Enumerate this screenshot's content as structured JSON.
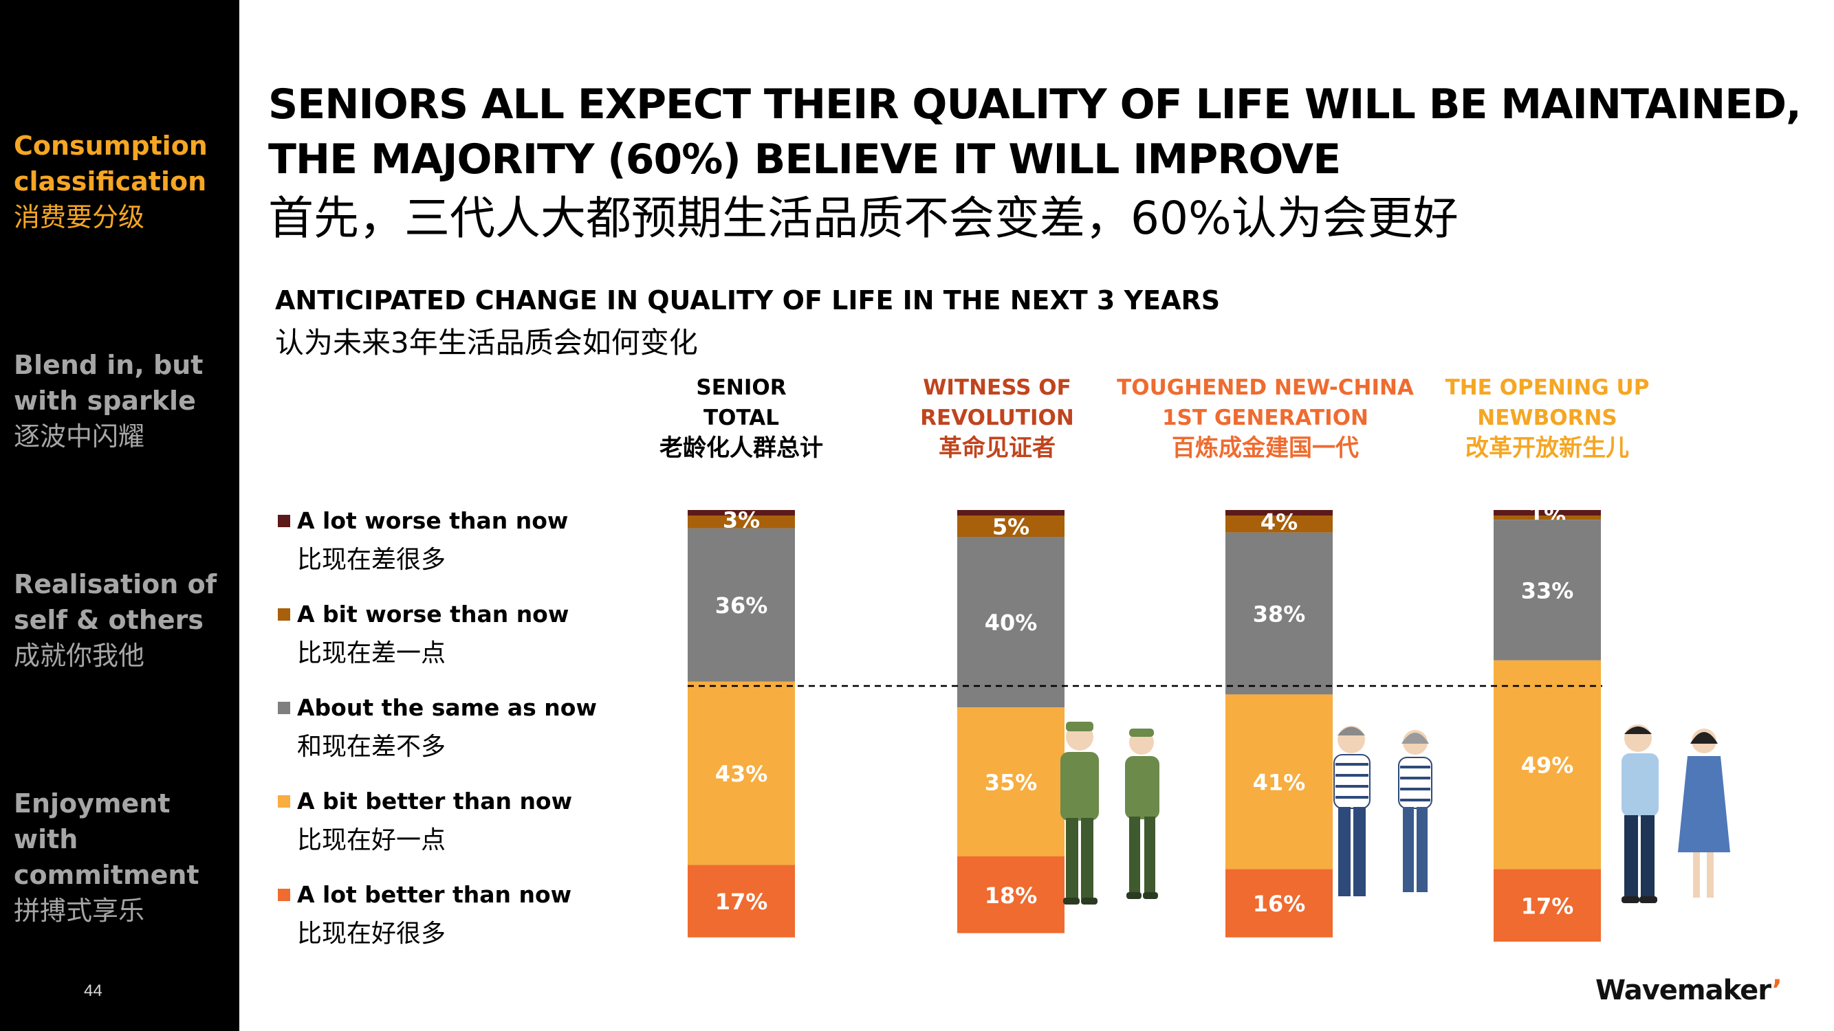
{
  "sidebar": {
    "items": [
      {
        "en": "Consumption classification",
        "cn": "消费要分级",
        "active": true
      },
      {
        "en": "Blend in, but with sparkle",
        "cn": "逐波中闪耀",
        "active": false
      },
      {
        "en": "Realisation of self & others",
        "cn": "成就你我他",
        "active": false
      },
      {
        "en": "Enjoyment with commitment",
        "cn": "拼搏式享乐",
        "active": false
      }
    ],
    "page_number": "44"
  },
  "header": {
    "title_line1": "SENIORS ALL EXPECT THEIR QUALITY OF LIFE WILL BE MAINTAINED,",
    "title_line2": "THE MAJORITY (60%) BELIEVE IT WILL IMPROVE",
    "title_cn": "首先，三代人大都预期生活品质不会变差，60%认为会更好"
  },
  "colors": {
    "a_lot_worse": "#5c1a1a",
    "a_bit_worse": "#a8600b",
    "same": "#7f7f7f",
    "a_bit_better": "#f7ad3f",
    "a_lot_better": "#ef6b2f",
    "accent": "#f5a623",
    "witness": "#c0441d",
    "toughened": "#ef6b2f",
    "opening": "#f5a623"
  },
  "chart_data": {
    "type": "bar",
    "stacked": true,
    "title": "ANTICIPATED CHANGE IN QUALITY OF LIFE IN THE NEXT 3 YEARS",
    "subtitle": "认为未来3年生活品质会如何变化",
    "categories": [
      {
        "line1": "SENIOR",
        "line2": "TOTAL",
        "cn": "老龄化人群总计",
        "color": "#000000"
      },
      {
        "line1": "WITNESS OF",
        "line2": "REVOLUTION",
        "cn": "革命见证者",
        "color": "#c0441d"
      },
      {
        "line1": "TOUGHENED NEW-CHINA",
        "line2": "1ST GENERATION",
        "cn": "百炼成金建国一代",
        "color": "#ef6b2f"
      },
      {
        "line1": "THE OPENING UP",
        "line2": "NEWBORNS",
        "cn": "改革开放新生儿",
        "color": "#f5a623"
      }
    ],
    "series": [
      {
        "name": "A lot worse than now",
        "name_cn": "比现在差很多",
        "color": "#5c1a1a",
        "values": [
          0,
          0,
          0,
          0
        ]
      },
      {
        "name": "A bit worse than now",
        "name_cn": "比现在差一点",
        "color": "#a8600b",
        "values": [
          3,
          5,
          4,
          1
        ]
      },
      {
        "name": "About the same as now",
        "name_cn": "和现在差不多",
        "color": "#7f7f7f",
        "values": [
          36,
          40,
          38,
          33
        ]
      },
      {
        "name": "A bit better than now",
        "name_cn": "比现在好一点",
        "color": "#f7ad3f",
        "values": [
          43,
          35,
          41,
          49
        ]
      },
      {
        "name": "A lot better than now",
        "name_cn": "比现在好很多",
        "color": "#ef6b2f",
        "values": [
          17,
          18,
          16,
          17
        ]
      }
    ],
    "data_labels": [
      "3%",
      "36%",
      "43%",
      "17%",
      "5%",
      "40%",
      "35%",
      "18%",
      "4%",
      "38%",
      "41%",
      "16%",
      "1%",
      "33%",
      "49%",
      "17%"
    ],
    "reference_line": "dashed",
    "ylim": [
      0,
      100
    ]
  },
  "logo": {
    "text": "Wavemaker"
  }
}
